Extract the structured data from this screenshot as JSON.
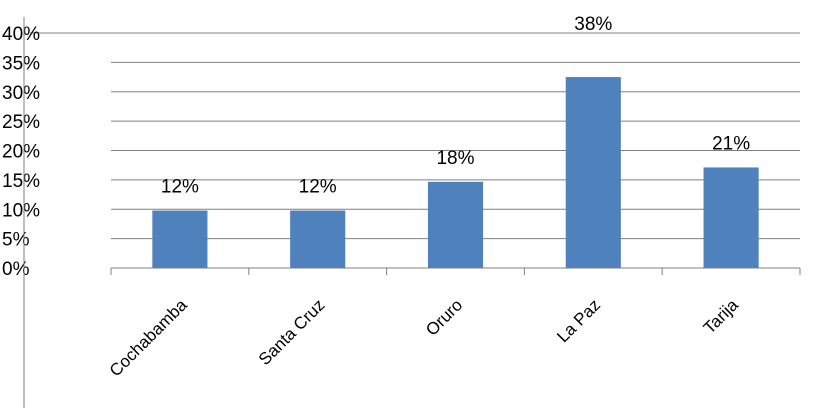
{
  "chart_data": {
    "type": "bar",
    "categories": [
      "Cochabamba",
      "Santa Cruz",
      "Oruro",
      "La Paz",
      "Tarija"
    ],
    "values": [
      12,
      12,
      18,
      38,
      21
    ],
    "data_labels": [
      "12%",
      "12%",
      "18%",
      "38%",
      "21%"
    ],
    "ylim": [
      0,
      40
    ],
    "yticks": [
      "0%",
      "5%",
      "10%",
      "15%",
      "20%",
      "25%",
      "30%",
      "35%",
      "40%"
    ],
    "grid": true,
    "legend": "none",
    "colors": {
      "bar": "#4f81bd",
      "grid": "#808080",
      "axis": "#808080"
    }
  }
}
